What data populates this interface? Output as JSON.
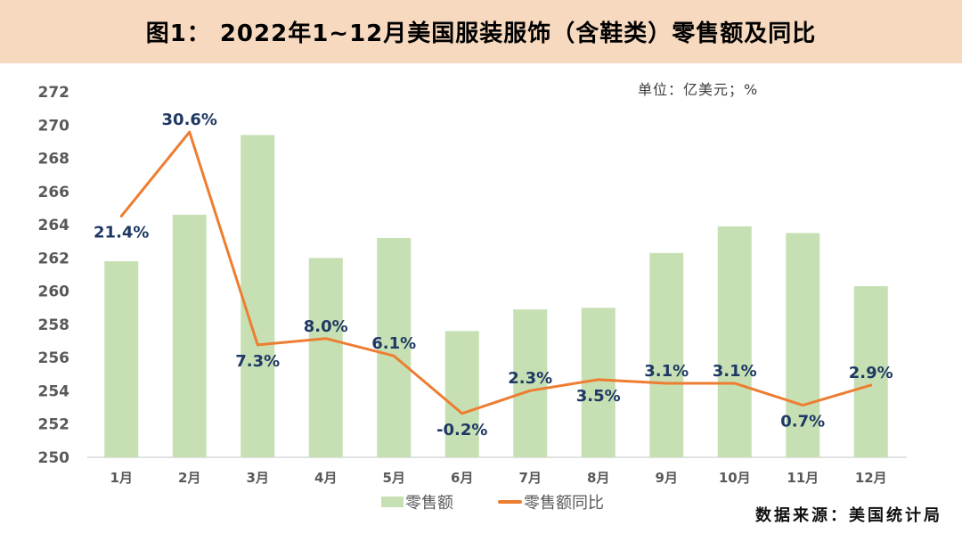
{
  "header": {
    "title": "图1： 2022年1~12月美国服装服饰（含鞋类）零售额及同比"
  },
  "unit_label": "单位：亿美元；%",
  "source": "数据来源：美国统计局",
  "legend": [
    {
      "label": "零售额",
      "swatch": "green-bar"
    },
    {
      "label": "零售额同比",
      "swatch": "orange-line"
    }
  ],
  "colors": {
    "header_bg": "#F7D9BF",
    "bar": "#C6E0B4",
    "line": "#ED7D31",
    "data_label": "#1F3864",
    "axis_text": "#595959",
    "axis_line": "#D9D9D9"
  },
  "chart_data": {
    "type": "bar",
    "combo": "bar+line",
    "title": "图1： 2022年1~12月美国服装服饰（含鞋类）零售额及同比",
    "categories": [
      "1月",
      "2月",
      "3月",
      "4月",
      "5月",
      "6月",
      "7月",
      "8月",
      "9月",
      "10月",
      "11月",
      "12月"
    ],
    "series": [
      {
        "name": "零售额",
        "type": "bar",
        "axis": "left",
        "values": [
          261.8,
          264.6,
          269.4,
          262.0,
          263.2,
          257.6,
          258.9,
          259.0,
          262.3,
          263.9,
          263.5,
          260.3
        ]
      },
      {
        "name": "零售额同比",
        "type": "line",
        "axis": "right",
        "values": [
          21.4,
          30.6,
          7.3,
          8.0,
          6.1,
          -0.2,
          2.3,
          3.5,
          3.1,
          3.1,
          0.7,
          2.9
        ],
        "labels": [
          "21.4%",
          "30.6%",
          "7.3%",
          "8.0%",
          "6.1%",
          "-0.2%",
          "2.3%",
          "3.5%",
          "3.1%",
          "3.1%",
          "0.7%",
          "2.9%"
        ],
        "label_positions": [
          "below",
          "above",
          "below",
          "above",
          "above",
          "below",
          "above",
          "below",
          "above",
          "above",
          "below",
          "above"
        ]
      }
    ],
    "left_axis": {
      "min": 250,
      "max": 272,
      "step": 2,
      "unit": "亿美元",
      "visible": true
    },
    "right_axis": {
      "min": -5,
      "max": 35,
      "unit": "%",
      "visible": false
    },
    "grid": false,
    "legend_position": "bottom",
    "source": "数据来源：美国统计局"
  }
}
